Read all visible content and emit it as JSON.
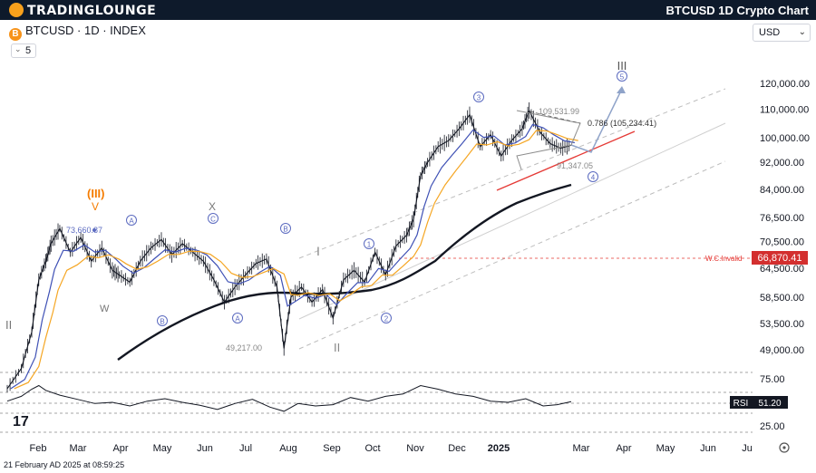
{
  "header": {
    "brand": "TRADINGLOUNGE",
    "chart_title": "BTCUSD 1D Crypto Chart",
    "symbol": "BTCUSD · 1D · INDEX",
    "currency": "USD",
    "indicator_count": "5",
    "btc_glyph": "B"
  },
  "footer": {
    "timestamp": "21 February AD 2025 at 08:59:25"
  },
  "tv_logo": "17",
  "annotations": {
    "wave_III_orange": "(III)",
    "wave_V_orange": "V",
    "wave_A1": "A",
    "wave_X": "X",
    "wave_C": "C",
    "wave_B2": "B",
    "wave_B1": "B",
    "wave_A2": "A",
    "wave_W": "W",
    "wave_I": "I",
    "wave_II": "II",
    "wave_II_left": "II",
    "wave_1": "1",
    "wave_2": "2",
    "wave_3": "3",
    "wave_4": "4",
    "wave_5": "5",
    "wave_III_big": "III",
    "label_high_left": "73,660.87",
    "label_low": "49,217.00",
    "label_top": "109,531.99",
    "label_fib": "0.786 (105,234.41)",
    "label_bottom": "91,347.05",
    "wc_invalid": "W.C.Invalid",
    "wc_price": "66,870.41",
    "rsi_label": "RSI",
    "rsi_value": "51.20"
  },
  "colors": {
    "price_axis_badge": "#d32f2f",
    "rsi_badge": "#131722",
    "ema_fast": "#3f51b5",
    "ema_slow": "#f5a623",
    "sma_long": "#131722",
    "wave_orange": "#f57c00",
    "wave_circle": "#5c6bc0",
    "trend_red": "#e53935",
    "channel_gray": "#bdbdbd"
  },
  "chart_data": {
    "type": "line",
    "title": "BTCUSD 1D Crypto Chart",
    "xlabel": "",
    "ylabel": "",
    "x_ticks": [
      "Feb",
      "Mar",
      "Apr",
      "May",
      "Jun",
      "Jul",
      "Aug",
      "Sep",
      "Oct",
      "Nov",
      "Dec",
      "2025",
      "Mar",
      "Apr",
      "May",
      "Jun",
      "Ju"
    ],
    "y_ticks": [
      "120,000.00",
      "110,000.00",
      "100,000.00",
      "92,000.00",
      "84,000.00",
      "76,500.00",
      "70,500.00",
      "64,500.00",
      "58,500.00",
      "53,500.00",
      "49,000.00"
    ],
    "ylim": [
      45000,
      125000
    ],
    "rsi_ticks": [
      "75.00",
      "25.00"
    ],
    "rsi_range": [
      0,
      100
    ],
    "grid": false,
    "series": [
      {
        "name": "BTCUSD",
        "values": [
          [
            0,
            43000
          ],
          [
            8,
            46000
          ],
          [
            14,
            52000
          ],
          [
            18,
            62000
          ],
          [
            22,
            66000
          ],
          [
            25,
            70000
          ],
          [
            30,
            73660
          ],
          [
            36,
            68000
          ],
          [
            42,
            71500
          ],
          [
            48,
            66000
          ],
          [
            54,
            69000
          ],
          [
            60,
            64000
          ],
          [
            64,
            63000
          ],
          [
            70,
            61500
          ],
          [
            76,
            66000
          ],
          [
            82,
            69000
          ],
          [
            88,
            71000
          ],
          [
            94,
            67500
          ],
          [
            100,
            70000
          ],
          [
            106,
            68000
          ],
          [
            112,
            66000
          ],
          [
            118,
            62000
          ],
          [
            124,
            57500
          ],
          [
            130,
            60500
          ],
          [
            136,
            63000
          ],
          [
            142,
            65500
          ],
          [
            148,
            66500
          ],
          [
            154,
            60500
          ],
          [
            158,
            49217
          ],
          [
            162,
            58500
          ],
          [
            168,
            60500
          ],
          [
            174,
            57500
          ],
          [
            180,
            60000
          ],
          [
            186,
            54500
          ],
          [
            192,
            62000
          ],
          [
            198,
            64000
          ],
          [
            204,
            61500
          ],
          [
            210,
            68000
          ],
          [
            216,
            63000
          ],
          [
            222,
            69500
          ],
          [
            228,
            72000
          ],
          [
            232,
            76000
          ],
          [
            236,
            88000
          ],
          [
            240,
            92000
          ],
          [
            246,
            97000
          ],
          [
            252,
            99000
          ],
          [
            258,
            103000
          ],
          [
            264,
            108000
          ],
          [
            270,
            97000
          ],
          [
            276,
            101000
          ],
          [
            282,
            94000
          ],
          [
            288,
            99000
          ],
          [
            294,
            103000
          ],
          [
            298,
            109531
          ],
          [
            304,
            102000
          ],
          [
            310,
            98000
          ],
          [
            316,
            96500
          ],
          [
            322,
            97500
          ]
        ]
      },
      {
        "name": "RSI",
        "values": [
          [
            0,
            52
          ],
          [
            8,
            60
          ],
          [
            14,
            72
          ],
          [
            18,
            78
          ],
          [
            22,
            70
          ],
          [
            30,
            62
          ],
          [
            40,
            55
          ],
          [
            50,
            48
          ],
          [
            60,
            50
          ],
          [
            70,
            44
          ],
          [
            80,
            52
          ],
          [
            90,
            56
          ],
          [
            100,
            50
          ],
          [
            110,
            45
          ],
          [
            120,
            38
          ],
          [
            130,
            48
          ],
          [
            140,
            55
          ],
          [
            150,
            42
          ],
          [
            158,
            35
          ],
          [
            166,
            48
          ],
          [
            176,
            44
          ],
          [
            186,
            46
          ],
          [
            196,
            58
          ],
          [
            206,
            52
          ],
          [
            216,
            60
          ],
          [
            226,
            64
          ],
          [
            236,
            78
          ],
          [
            246,
            72
          ],
          [
            256,
            64
          ],
          [
            266,
            60
          ],
          [
            276,
            52
          ],
          [
            286,
            50
          ],
          [
            296,
            56
          ],
          [
            306,
            44
          ],
          [
            314,
            46
          ],
          [
            322,
            51
          ]
        ]
      }
    ]
  }
}
